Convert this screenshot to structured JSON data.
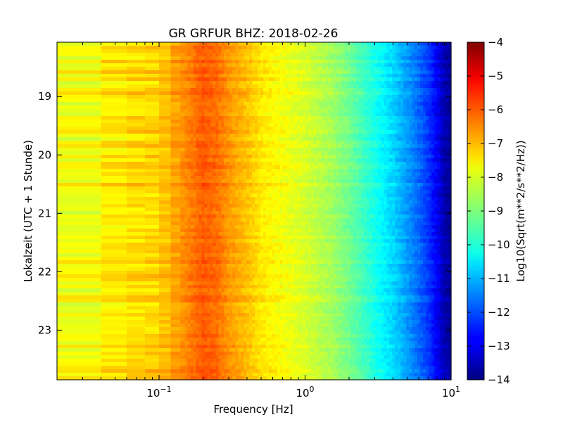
{
  "chart_data": {
    "type": "heatmap",
    "title": "GR GRFUR BHZ: 2018-02-26",
    "xlabel": "Frequency [Hz]",
    "ylabel": "Lokalzeit (UTC + 1 Stunde)",
    "x_scale": "log",
    "xlim": [
      0.02,
      10
    ],
    "x_ticks": [
      {
        "value": 0.1,
        "base": "10",
        "exp": "−1"
      },
      {
        "value": 1,
        "base": "10",
        "exp": "0"
      },
      {
        "value": 10,
        "base": "10",
        "exp": "1"
      }
    ],
    "ylim": [
      18.07,
      23.85
    ],
    "y_inverted": true,
    "y_ticks": [
      {
        "value": 19,
        "label": "19"
      },
      {
        "value": 20,
        "label": "20"
      },
      {
        "value": 21,
        "label": "21"
      },
      {
        "value": 22,
        "label": "22"
      },
      {
        "value": 23,
        "label": "23"
      }
    ],
    "colorbar": {
      "label": "Log10(Sqrt(m**2/s**2/Hz))",
      "range": [
        -14,
        -4
      ],
      "colormap": "jet",
      "ticks": [
        {
          "value": -4,
          "label": "−4"
        },
        {
          "value": -5,
          "label": "−5"
        },
        {
          "value": -6,
          "label": "−6"
        },
        {
          "value": -7,
          "label": "−7"
        },
        {
          "value": -8,
          "label": "−8"
        },
        {
          "value": -9,
          "label": "−9"
        },
        {
          "value": -10,
          "label": "−10"
        },
        {
          "value": -11,
          "label": "−11"
        },
        {
          "value": -12,
          "label": "−12"
        },
        {
          "value": -13,
          "label": "−13"
        },
        {
          "value": -14,
          "label": "−14"
        }
      ]
    },
    "spectrum_profile": {
      "frequency_hz": [
        0.02,
        0.04,
        0.06,
        0.08,
        0.1,
        0.12,
        0.15,
        0.2,
        0.25,
        0.3,
        0.4,
        0.5,
        0.7,
        1.0,
        1.5,
        2.0,
        3.0,
        4.0,
        5.0,
        6.0,
        7.0,
        8.0,
        9.0,
        10.0
      ],
      "log10_amplitude": [
        -8.0,
        -7.6,
        -7.4,
        -7.3,
        -7.3,
        -6.9,
        -6.6,
        -6.1,
        -6.3,
        -6.7,
        -7.1,
        -7.5,
        -7.8,
        -8.1,
        -8.6,
        -9.1,
        -10.0,
        -10.6,
        -11.2,
        -11.7,
        -12.2,
        -12.8,
        -13.5,
        -13.7
      ]
    }
  }
}
